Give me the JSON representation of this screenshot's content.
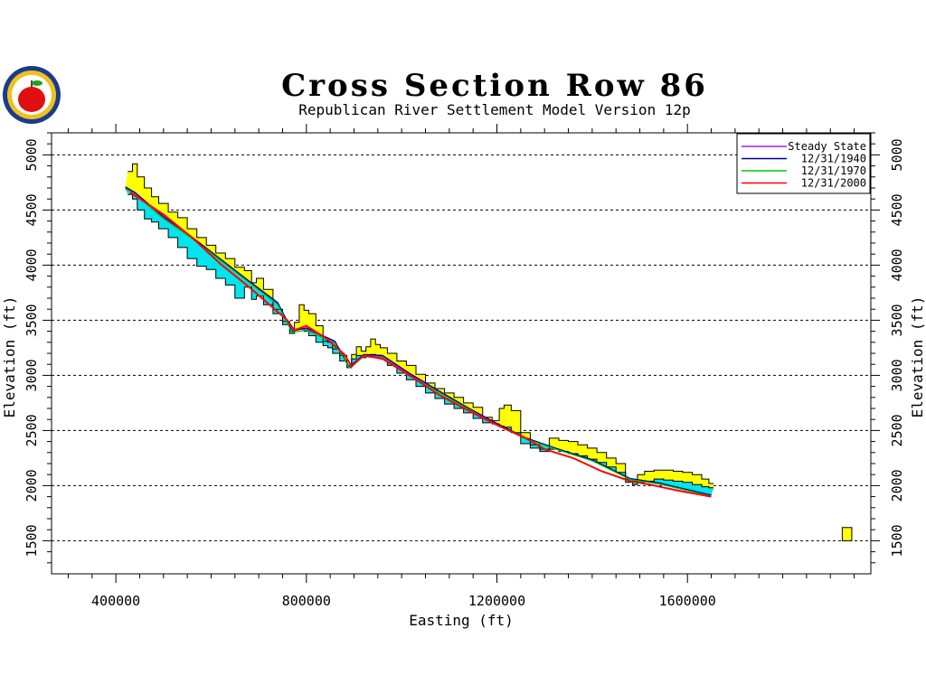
{
  "chart_data": {
    "type": "line",
    "title": "Cross Section Row 86",
    "subtitle": "Republican River Settlement Model Version 12p",
    "xlabel": "Easting (ft)",
    "ylabel": "Elevation (ft)",
    "xlim": [
      265000,
      1985000
    ],
    "ylim": [
      1200,
      5200
    ],
    "x_ticks": [
      400000,
      800000,
      1200000,
      1600000
    ],
    "x_tick_labels": [
      "400000",
      "800000",
      "1200000",
      "1600000"
    ],
    "y_ticks": [
      1500,
      2000,
      2500,
      3000,
      3500,
      4000,
      4500,
      5000
    ],
    "y_tick_labels": [
      "1500",
      "2000",
      "2500",
      "3000",
      "3500",
      "4000",
      "4500",
      "5000"
    ],
    "grid": "horizontal dashed",
    "legend_position": "top-right",
    "colors": {
      "land_surface_band": "#ffff00",
      "depletion_band": "#00e5ee",
      "outline": "#000000",
      "steady_state": "#a020f0",
      "y1940": "#00008b",
      "y1970": "#00cc00",
      "y2000": "#ff0000"
    },
    "series": [
      {
        "name": "Steady State",
        "x": [
          420000,
          440000,
          500000,
          560000,
          620000,
          680000,
          740000,
          770000,
          800000,
          860000,
          890000,
          920000,
          960000,
          1020000,
          1080000,
          1140000,
          1200000,
          1260000,
          1320000,
          1400000,
          1480000,
          1540000,
          1600000,
          1650000
        ],
        "y": [
          4700,
          4650,
          4430,
          4250,
          4050,
          3850,
          3650,
          3420,
          3420,
          3300,
          3080,
          3180,
          3170,
          3000,
          2850,
          2700,
          2560,
          2430,
          2340,
          2230,
          2060,
          2020,
          1960,
          1910
        ]
      },
      {
        "name": "12/31/1940",
        "x": [
          420000,
          440000,
          500000,
          560000,
          620000,
          680000,
          740000,
          770000,
          800000,
          860000,
          890000,
          920000,
          960000,
          1020000,
          1080000,
          1140000,
          1200000,
          1260000,
          1320000,
          1400000,
          1480000,
          1540000,
          1600000,
          1650000
        ],
        "y": [
          4710,
          4660,
          4440,
          4255,
          4055,
          3855,
          3660,
          3400,
          3430,
          3310,
          3075,
          3190,
          3180,
          3010,
          2855,
          2705,
          2565,
          2435,
          2345,
          2235,
          2065,
          2025,
          1965,
          1915
        ]
      },
      {
        "name": "12/31/1970",
        "x": [
          420000,
          440000,
          500000,
          560000,
          620000,
          680000,
          740000,
          770000,
          800000,
          860000,
          890000,
          920000,
          960000,
          1020000,
          1080000,
          1140000,
          1200000,
          1260000,
          1320000,
          1400000,
          1480000,
          1540000,
          1600000,
          1650000
        ],
        "y": [
          4690,
          4640,
          4420,
          4240,
          4040,
          3840,
          3640,
          3390,
          3410,
          3290,
          3070,
          3170,
          3160,
          2990,
          2840,
          2690,
          2550,
          2425,
          2335,
          2225,
          2055,
          2015,
          1955,
          1905
        ]
      },
      {
        "name": "12/31/2000",
        "x": [
          430000,
          500000,
          560000,
          620000,
          680000,
          720000,
          760000,
          775000,
          800000,
          840000,
          880000,
          895000,
          920000,
          960000,
          1020000,
          1080000,
          1140000,
          1200000,
          1260000,
          1300000,
          1360000,
          1420000,
          1480000,
          1520000,
          1580000,
          1650000
        ],
        "y": [
          4660,
          4460,
          4250,
          4010,
          3800,
          3650,
          3500,
          3410,
          3450,
          3340,
          3190,
          3080,
          3180,
          3150,
          2990,
          2820,
          2680,
          2550,
          2430,
          2330,
          2250,
          2130,
          2040,
          2010,
          1955,
          1900
        ]
      }
    ],
    "land_surface": {
      "x": [
        430000,
        440000,
        450000,
        470000,
        480000,
        500000,
        520000,
        540000,
        560000,
        580000,
        600000,
        620000,
        640000,
        660000,
        680000,
        690000,
        700000,
        720000,
        740000,
        760000,
        770000,
        780000,
        790000,
        800000,
        810000,
        830000,
        840000,
        850000,
        860000,
        880000,
        890000,
        900000,
        910000,
        920000,
        930000,
        940000,
        950000,
        960000,
        980000,
        1000000,
        1020000,
        1040000,
        1060000,
        1080000,
        1100000,
        1120000,
        1140000,
        1160000,
        1180000,
        1200000,
        1210000,
        1220000,
        1240000,
        1260000,
        1280000,
        1300000,
        1320000,
        1340000,
        1360000,
        1380000,
        1400000,
        1420000,
        1440000,
        1460000,
        1480000,
        1490000,
        1500000,
        1520000,
        1540000,
        1560000,
        1580000,
        1600000,
        1620000,
        1640000,
        1650000
      ],
      "y": [
        4850,
        4920,
        4800,
        4700,
        4620,
        4560,
        4480,
        4430,
        4330,
        4250,
        4180,
        4110,
        4060,
        3980,
        3950,
        3840,
        3880,
        3780,
        3600,
        3490,
        3380,
        3480,
        3640,
        3590,
        3560,
        3450,
        3310,
        3300,
        3240,
        3180,
        3090,
        3190,
        3260,
        3220,
        3260,
        3330,
        3280,
        3250,
        3200,
        3130,
        3090,
        3010,
        2930,
        2880,
        2840,
        2800,
        2750,
        2710,
        2620,
        2590,
        2700,
        2730,
        2680,
        2480,
        2370,
        2330,
        2430,
        2410,
        2400,
        2370,
        2340,
        2300,
        2250,
        2200,
        2060,
        2040,
        2100,
        2130,
        2140,
        2140,
        2130,
        2120,
        2100,
        2060,
        2020
      ]
    },
    "min_head": {
      "x": [
        430000,
        440000,
        450000,
        470000,
        480000,
        500000,
        520000,
        540000,
        560000,
        580000,
        600000,
        620000,
        640000,
        660000,
        680000,
        690000,
        700000,
        720000,
        740000,
        760000,
        770000,
        780000,
        790000,
        800000,
        810000,
        830000,
        840000,
        850000,
        860000,
        880000,
        890000,
        900000,
        910000,
        920000,
        930000,
        940000,
        950000,
        960000,
        980000,
        1000000,
        1020000,
        1040000,
        1060000,
        1080000,
        1100000,
        1120000,
        1140000,
        1160000,
        1180000,
        1200000,
        1210000,
        1220000,
        1240000,
        1260000,
        1280000,
        1300000,
        1320000,
        1340000,
        1360000,
        1380000,
        1400000,
        1420000,
        1440000,
        1460000,
        1480000,
        1490000,
        1500000,
        1520000,
        1540000,
        1560000,
        1580000,
        1600000,
        1620000,
        1640000,
        1650000
      ],
      "y": [
        4640,
        4600,
        4500,
        4420,
        4390,
        4330,
        4250,
        4160,
        4060,
        3990,
        3960,
        3880,
        3820,
        3700,
        3800,
        3690,
        3720,
        3640,
        3560,
        3460,
        3380,
        3420,
        3420,
        3400,
        3360,
        3300,
        3270,
        3250,
        3200,
        3130,
        3070,
        3150,
        3180,
        3160,
        3180,
        3190,
        3180,
        3150,
        3090,
        3020,
        2960,
        2900,
        2840,
        2790,
        2740,
        2700,
        2660,
        2610,
        2570,
        2560,
        2540,
        2530,
        2480,
        2380,
        2340,
        2310,
        2330,
        2310,
        2290,
        2270,
        2240,
        2210,
        2170,
        2120,
        2030,
        2010,
        2030,
        2040,
        2060,
        2050,
        2040,
        2030,
        2010,
        1990,
        1980
      ]
    },
    "isolated_cell": {
      "x": [
        1925000,
        1945000
      ],
      "land_surface": 1620,
      "min_head": 1500
    }
  }
}
